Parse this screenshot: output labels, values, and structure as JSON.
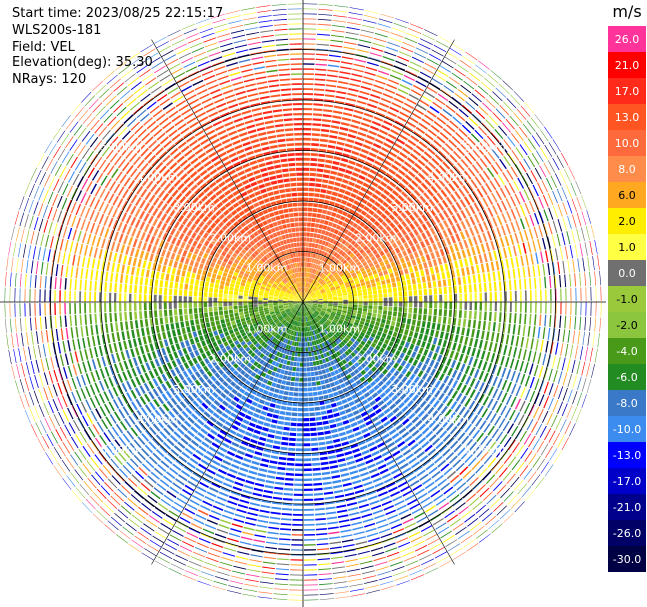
{
  "header": {
    "start_time": "Start time: 2023/08/25 22:15:17",
    "instrument": "WLS200s-181",
    "field": "Field: VEL",
    "elevation": "Elevation(deg): 35.30",
    "nrays": "NRays: 120"
  },
  "chart_data": {
    "type": "heatmap",
    "projection": "ppi-polar",
    "field": "VEL",
    "units": "m/s",
    "elevation_deg": 35.3,
    "n_rays": 120,
    "max_range_km": 6.0,
    "range_ring_labels": [
      "1.00km",
      "2.00km",
      "3.00km",
      "4.00km",
      "5.00km"
    ],
    "colorbar": {
      "unit_label": "m/s",
      "tick_labels": [
        "26.0",
        "21.0",
        "17.0",
        "13.0",
        "10.0",
        "8.0",
        "6.0",
        "2.0",
        "1.0",
        "0.0",
        "-1.0",
        "-2.0",
        "-4.0",
        "-6.0",
        "-8.0",
        "-10.0",
        "-13.0",
        "-17.0",
        "-21.0",
        "-26.0",
        "-30.0"
      ],
      "bins": [
        {
          "value": 26.0,
          "color": "#ff3399"
        },
        {
          "value": 21.0,
          "color": "#ff0000"
        },
        {
          "value": 17.0,
          "color": "#ff2a1a"
        },
        {
          "value": 13.0,
          "color": "#ff5522"
        },
        {
          "value": 10.0,
          "color": "#ff6a3c"
        },
        {
          "value": 8.0,
          "color": "#ff8c4a"
        },
        {
          "value": 6.0,
          "color": "#ffa820"
        },
        {
          "value": 2.0,
          "color": "#ffee00"
        },
        {
          "value": 1.0,
          "color": "#ffff44"
        },
        {
          "value": 0.0,
          "color": "#707070"
        },
        {
          "value": -1.0,
          "color": "#9aca3c"
        },
        {
          "value": -2.0,
          "color": "#8cc63f"
        },
        {
          "value": -4.0,
          "color": "#4a9a1a"
        },
        {
          "value": -6.0,
          "color": "#228b22"
        },
        {
          "value": -8.0,
          "color": "#3a78c8"
        },
        {
          "value": -10.0,
          "color": "#3c8cf0"
        },
        {
          "value": -13.0,
          "color": "#0000ff"
        },
        {
          "value": -17.0,
          "color": "#0000c8"
        },
        {
          "value": -21.0,
          "color": "#00008c"
        },
        {
          "value": -26.0,
          "color": "#000066"
        },
        {
          "value": -30.0,
          "color": "#000044"
        }
      ]
    },
    "velocity_pattern": {
      "description_code": "dipole",
      "positive_azimuth_deg": 0,
      "peak_positive_ms": 17.0,
      "peak_negative_ms": -10.0,
      "noise_beyond_km": 4.5
    }
  }
}
